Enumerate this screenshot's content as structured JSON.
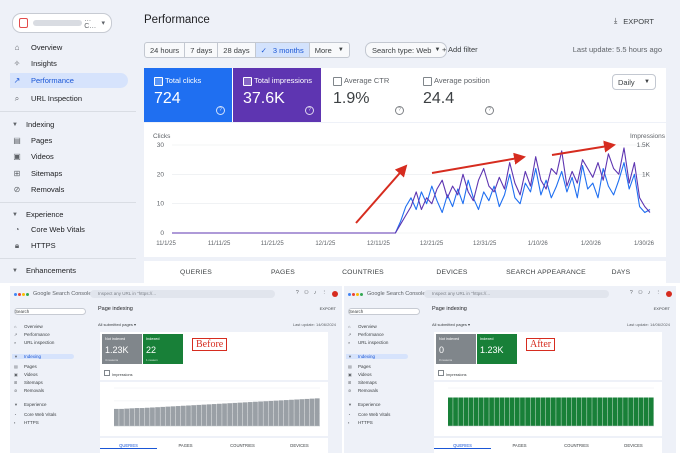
{
  "colors": {
    "clicks": "#1f6ff1",
    "impressions": "#5e35b1",
    "arrow": "#d62c1f",
    "green": "#188038",
    "grey": "#80868b"
  },
  "top": {
    "property_suffix": "…C…",
    "nav": {
      "overview": "Overview",
      "insights": "Insights",
      "performance": "Performance",
      "url_inspection": "URL Inspection",
      "indexing_section": "Indexing",
      "pages": "Pages",
      "videos": "Videos",
      "sitemaps": "Sitemaps",
      "removals": "Removals",
      "experience_section": "Experience",
      "cwv": "Core Web Vitals",
      "https": "HTTPS",
      "enhancements_section": "Enhancements"
    },
    "title": "Performance",
    "export": "EXPORT",
    "ranges": [
      "24 hours",
      "7 days",
      "28 days",
      "3 months",
      "More"
    ],
    "search_type": "Search type: Web",
    "add_filter": "+ Add filter",
    "last_update": "Last update: 5.5 hours ago",
    "metrics": {
      "clicks": {
        "label": "Total clicks",
        "value": "724"
      },
      "impressions": {
        "label": "Total impressions",
        "value": "37.6K"
      },
      "ctr": {
        "label": "Average CTR",
        "value": "1.9%"
      },
      "position": {
        "label": "Average position",
        "value": "24.4"
      }
    },
    "daily": "Daily",
    "tabs": [
      "QUERIES",
      "PAGES",
      "COUNTRIES",
      "DEVICES",
      "SEARCH APPEARANCE",
      "DAYS"
    ]
  },
  "chart_data": {
    "type": "line",
    "title": "",
    "y_left_label": "Clicks",
    "y_right_label": "Impressions",
    "y_left_ticks": [
      "30",
      "20",
      "10",
      "0"
    ],
    "y_right_ticks": [
      "1.5K",
      "1K"
    ],
    "x_ticks": [
      "11/1/25",
      "11/11/25",
      "11/21/25",
      "12/1/25",
      "12/11/25",
      "12/21/25",
      "12/31/25",
      "1/10/26",
      "1/20/26",
      "1/30/26"
    ],
    "ylim": [
      0,
      30
    ],
    "series": [
      {
        "values": [
          0,
          0,
          0,
          0,
          0,
          0,
          0,
          0,
          0,
          0,
          0,
          0,
          0,
          0,
          0,
          0,
          0,
          0,
          0,
          0,
          0,
          0,
          0,
          0,
          0,
          0,
          0,
          0,
          0,
          0,
          0,
          0,
          0,
          0,
          0,
          0,
          0,
          0,
          0,
          0,
          0,
          0,
          0,
          0,
          4,
          9,
          12,
          8,
          14,
          10,
          16,
          11,
          7,
          13,
          9,
          15,
          10,
          18,
          12,
          8,
          14,
          11,
          16,
          9,
          13,
          20,
          12,
          10,
          17,
          14,
          22,
          13,
          18,
          12,
          16,
          21,
          14,
          19,
          12,
          23,
          15,
          17,
          12,
          22,
          16,
          13,
          18,
          24,
          15,
          20,
          9,
          7,
          8
        ]
      },
      {
        "values": [
          0,
          0,
          0,
          0,
          0,
          0,
          0,
          0,
          0,
          0,
          0,
          0,
          0,
          0,
          0,
          0,
          0,
          0,
          0,
          0,
          0,
          0,
          0,
          0,
          0,
          0,
          0,
          0,
          0,
          0,
          0,
          0,
          0,
          0,
          0,
          0,
          0,
          0,
          0,
          0,
          0,
          0,
          0,
          0,
          3,
          6,
          9,
          14,
          8,
          12,
          10,
          15,
          18,
          12,
          16,
          13,
          20,
          14,
          11,
          18,
          22,
          16,
          14,
          19,
          15,
          24,
          17,
          13,
          21,
          16,
          26,
          18,
          15,
          22,
          20,
          28,
          16,
          21,
          17,
          25,
          22,
          19,
          24,
          18,
          27,
          22,
          20,
          29,
          17,
          24,
          12,
          9,
          7
        ]
      }
    ]
  },
  "before": {
    "label": "Before",
    "logo": "Google Search Console",
    "search": "Inspect any URL in \"https://...",
    "property": "Search",
    "nav": [
      "Overview",
      "Performance",
      "URL inspection",
      "Indexing",
      "Pages",
      "Videos",
      "Sitemaps",
      "Removals",
      "Experience",
      "Core Web Vitals",
      "HTTPS"
    ],
    "title": "Page indexing",
    "export": "EXPORT",
    "subtitle": "All submitted pages ▾",
    "updated": "Last update: 14/06/2024",
    "cards": [
      {
        "label": "Not indexed",
        "value": "1.23K",
        "sub": "4 reasons"
      },
      {
        "label": "Indexed",
        "value": "22",
        "sub": "1 reason"
      }
    ],
    "impressions_label": "Impressions",
    "tabs": [
      "QUERIES",
      "PAGES",
      "COUNTRIES",
      "DEVICES"
    ],
    "chart_data": {
      "type": "bar",
      "series": [
        {
          "name": "Not indexed",
          "values": [
            60,
            60,
            61,
            62,
            63,
            63,
            64,
            65,
            66,
            67,
            68,
            69,
            70,
            71,
            72,
            73,
            74,
            75,
            76,
            77,
            78,
            79,
            80,
            81,
            82,
            83,
            84,
            85,
            86,
            87,
            88,
            89,
            90,
            91,
            92,
            93,
            94,
            95,
            96,
            97
          ]
        },
        {
          "name": "Indexed",
          "values": [
            0,
            0,
            0,
            0,
            0,
            0,
            0,
            0,
            0,
            0,
            0,
            0,
            0,
            0,
            0,
            0,
            0,
            0,
            0,
            0,
            0,
            0,
            0,
            0,
            0,
            0,
            0,
            0,
            0,
            0,
            0,
            0,
            0,
            0,
            0,
            0,
            0,
            0,
            0,
            0
          ]
        }
      ]
    }
  },
  "after": {
    "label": "After",
    "logo": "Google Search Console",
    "search": "Inspect any URL in \"https://...",
    "property": "Search",
    "nav": [
      "Overview",
      "Performance",
      "URL inspection",
      "Indexing",
      "Pages",
      "Videos",
      "Sitemaps",
      "Removals",
      "Experience",
      "Core Web Vitals",
      "HTTPS"
    ],
    "title": "Page indexing",
    "export": "EXPORT",
    "subtitle": "All submitted pages ▾",
    "updated": "Last update: 14/06/2024",
    "cards": [
      {
        "label": "Not indexed",
        "value": "0",
        "sub": "0 reasons"
      },
      {
        "label": "Indexed",
        "value": "1.23K",
        "sub": ""
      }
    ],
    "impressions_label": "Impressions",
    "tabs": [
      "QUERIES",
      "PAGES",
      "COUNTRIES",
      "DEVICES"
    ],
    "chart_data": {
      "type": "bar",
      "series": [
        {
          "name": "Indexed",
          "values": [
            100,
            100,
            100,
            100,
            100,
            100,
            100,
            100,
            100,
            100,
            100,
            100,
            100,
            100,
            100,
            100,
            100,
            100,
            100,
            100,
            100,
            100,
            100,
            100,
            100,
            100,
            100,
            100,
            100,
            100,
            100,
            100,
            100,
            100,
            100,
            100,
            100,
            100,
            100,
            100
          ]
        }
      ]
    }
  }
}
